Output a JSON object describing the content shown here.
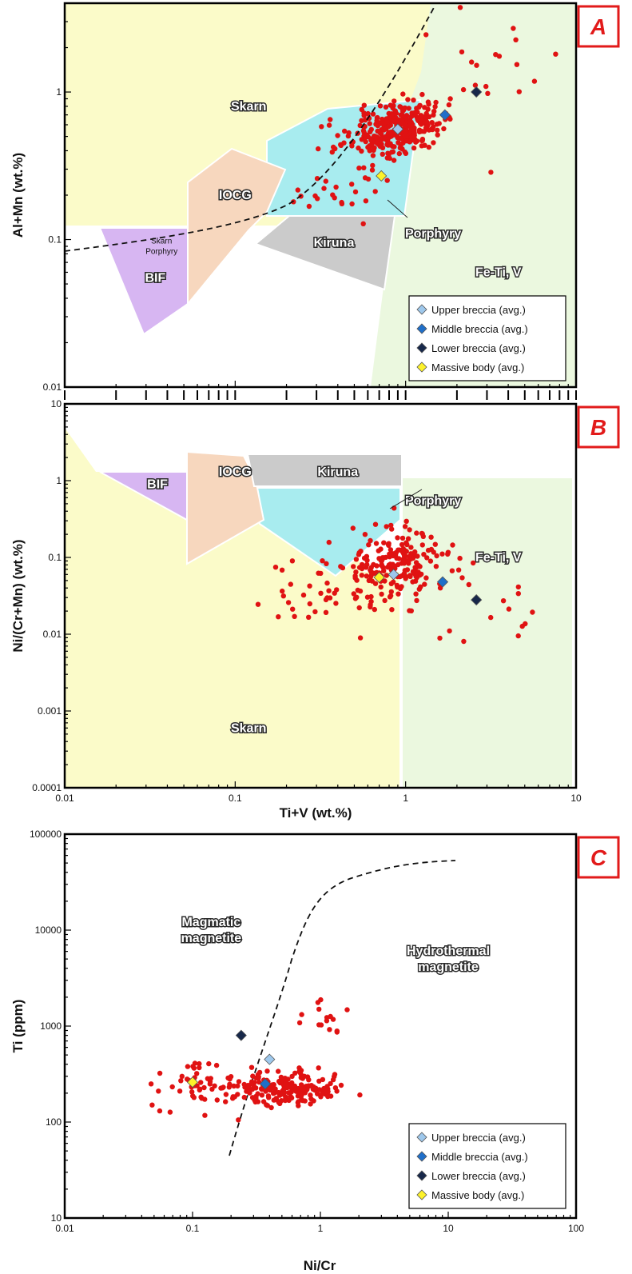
{
  "colors": {
    "skarn": "#fbfbc9",
    "fe_ti_v": "#ebf8df",
    "porphyry": "#a8ecef",
    "iocg": "#f7d7be",
    "kiruna": "#cbcbcb",
    "bif": "#d7b6f2",
    "data_point": "#e01212",
    "upper": "#9ec8ec",
    "middle": "#1f6fc9",
    "lower": "#17284a",
    "massive": "#fdf22a",
    "panel_letter": "#e21a1a"
  },
  "legend": [
    {
      "key": "upper",
      "label": "Upper breccia (avg.)"
    },
    {
      "key": "middle",
      "label": "Middle breccia (avg.)"
    },
    {
      "key": "lower",
      "label": "Lower breccia (avg.)"
    },
    {
      "key": "massive",
      "label": "Massive body (avg.)"
    }
  ],
  "chart_data": [
    {
      "panel": "A",
      "type": "scatter",
      "xscale": "log",
      "yscale": "log",
      "xlim": [
        0.01,
        10
      ],
      "ylim": [
        0.01,
        4
      ],
      "xlabel": "",
      "ylabel": "Al+Mn (wt.%)",
      "yticks": [
        "0.01",
        "0.1",
        "1"
      ],
      "xticks": [],
      "field_labels": [
        {
          "id": "skarn",
          "text": "Skarn",
          "x": 0.12,
          "y": 0.8
        },
        {
          "id": "iocg",
          "text": "IOCG",
          "x": 0.1,
          "y": 0.2
        },
        {
          "id": "kiruna",
          "text": "Kiruna",
          "x": 0.38,
          "y": 0.095
        },
        {
          "id": "porphyry",
          "text": "Porphyry",
          "x": 1.45,
          "y": 0.11
        },
        {
          "id": "bif",
          "text": "BIF",
          "x": 0.034,
          "y": 0.055
        },
        {
          "id": "fe-ti-v",
          "text": "Fe-Ti, V",
          "x": 3.5,
          "y": 0.06
        },
        {
          "id": "skarn-small",
          "text": "Skarn",
          "x": 0.037,
          "y": 0.1
        },
        {
          "id": "porphyry-small",
          "text": "Porphyry",
          "x": 0.037,
          "y": 0.085
        }
      ],
      "averages": [
        {
          "key": "upper",
          "x": 0.9,
          "y": 0.56
        },
        {
          "key": "middle",
          "x": 1.7,
          "y": 0.7
        },
        {
          "key": "lower",
          "x": 2.6,
          "y": 1.0
        },
        {
          "key": "massive",
          "x": 0.72,
          "y": 0.27
        }
      ]
    },
    {
      "panel": "B",
      "type": "scatter",
      "xscale": "log",
      "yscale": "log",
      "xlim": [
        0.01,
        10
      ],
      "ylim": [
        0.0001,
        10
      ],
      "xlabel": "Ti+V (wt.%)",
      "ylabel": "Ni/(Cr+Mn) (wt.%)",
      "xticks": [
        "0.01",
        "0.1",
        "1",
        "10"
      ],
      "yticks": [
        "0.0001",
        "0.001",
        "0.01",
        "0.1",
        "1",
        "10"
      ],
      "field_labels": [
        {
          "id": "bif",
          "text": "BIF",
          "x": 0.035,
          "y": 0.9
        },
        {
          "id": "iocg",
          "text": "IOCG",
          "x": 0.1,
          "y": 1.3
        },
        {
          "id": "kiruna",
          "text": "Kiruna",
          "x": 0.4,
          "y": 1.3
        },
        {
          "id": "porphyry",
          "text": "Porphyry",
          "x": 1.45,
          "y": 0.55
        },
        {
          "id": "fe-ti-v",
          "text": "Fe-Ti, V",
          "x": 3.5,
          "y": 0.1
        },
        {
          "id": "skarn",
          "text": "Skarn",
          "x": 0.12,
          "y": 0.0006
        }
      ],
      "averages": [
        {
          "key": "upper",
          "x": 0.85,
          "y": 0.06
        },
        {
          "key": "middle",
          "x": 1.65,
          "y": 0.048
        },
        {
          "key": "lower",
          "x": 2.6,
          "y": 0.028
        },
        {
          "key": "massive",
          "x": 0.7,
          "y": 0.055
        }
      ]
    },
    {
      "panel": "C",
      "type": "scatter",
      "xscale": "log",
      "yscale": "log",
      "xlim": [
        0.01,
        100
      ],
      "ylim": [
        10,
        100000
      ],
      "xlabel": "Ni/Cr",
      "ylabel": "Ti (ppm)",
      "xticks": [
        "0.01",
        "0.1",
        "1",
        "10",
        "100"
      ],
      "yticks": [
        "10",
        "100",
        "1000",
        "10000",
        "100000"
      ],
      "field_labels": [
        {
          "id": "magmatic",
          "lines": [
            "Magmatic",
            "magnetite"
          ],
          "x": 0.14,
          "y": 11000
        },
        {
          "id": "hydrothermal",
          "lines": [
            "Hydrothermal",
            "magnetite"
          ],
          "x": 10,
          "y": 5500
        }
      ],
      "averages": [
        {
          "key": "upper",
          "x": 0.4,
          "y": 450
        },
        {
          "key": "middle",
          "x": 0.37,
          "y": 250
        },
        {
          "key": "lower",
          "x": 0.24,
          "y": 800
        },
        {
          "key": "massive",
          "x": 0.1,
          "y": 260
        }
      ]
    }
  ]
}
